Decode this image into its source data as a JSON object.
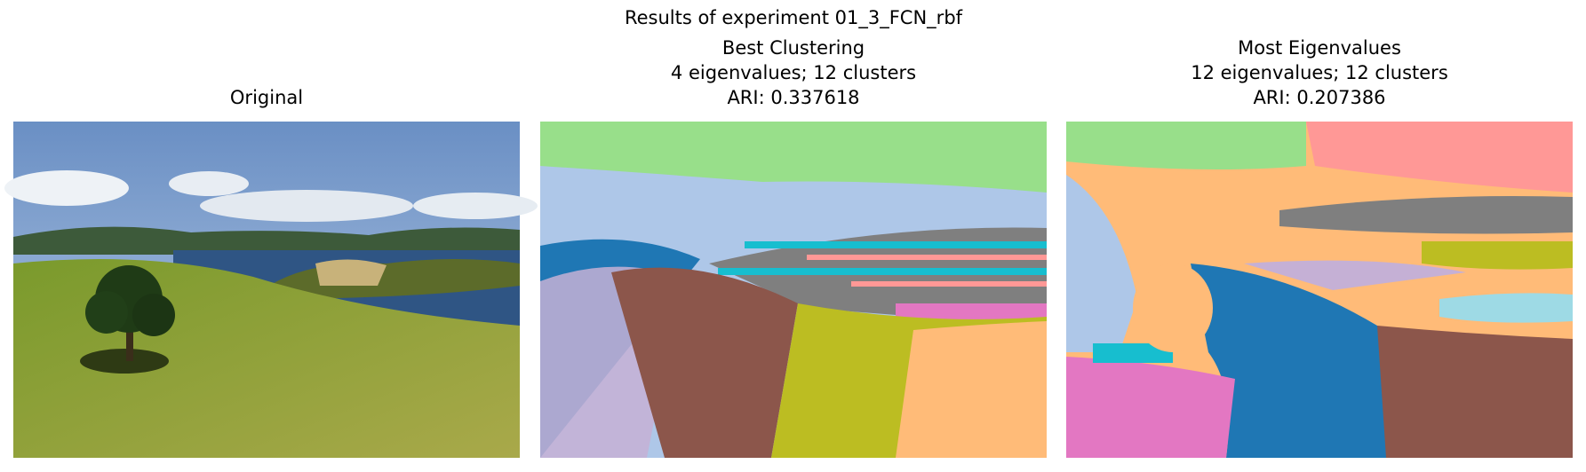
{
  "title": "Results of experiment 01_3_FCN_rbf",
  "panels": [
    {
      "title_lines": [
        "Original"
      ]
    },
    {
      "title_lines": [
        "Best Clustering",
        "4 eigenvalues; 12 clusters",
        "ARI: 0.337618"
      ]
    },
    {
      "title_lines": [
        "Most Eigenvalues",
        "12 eigenvalues; 12 clusters",
        "ARI: 0.207386"
      ]
    }
  ]
}
